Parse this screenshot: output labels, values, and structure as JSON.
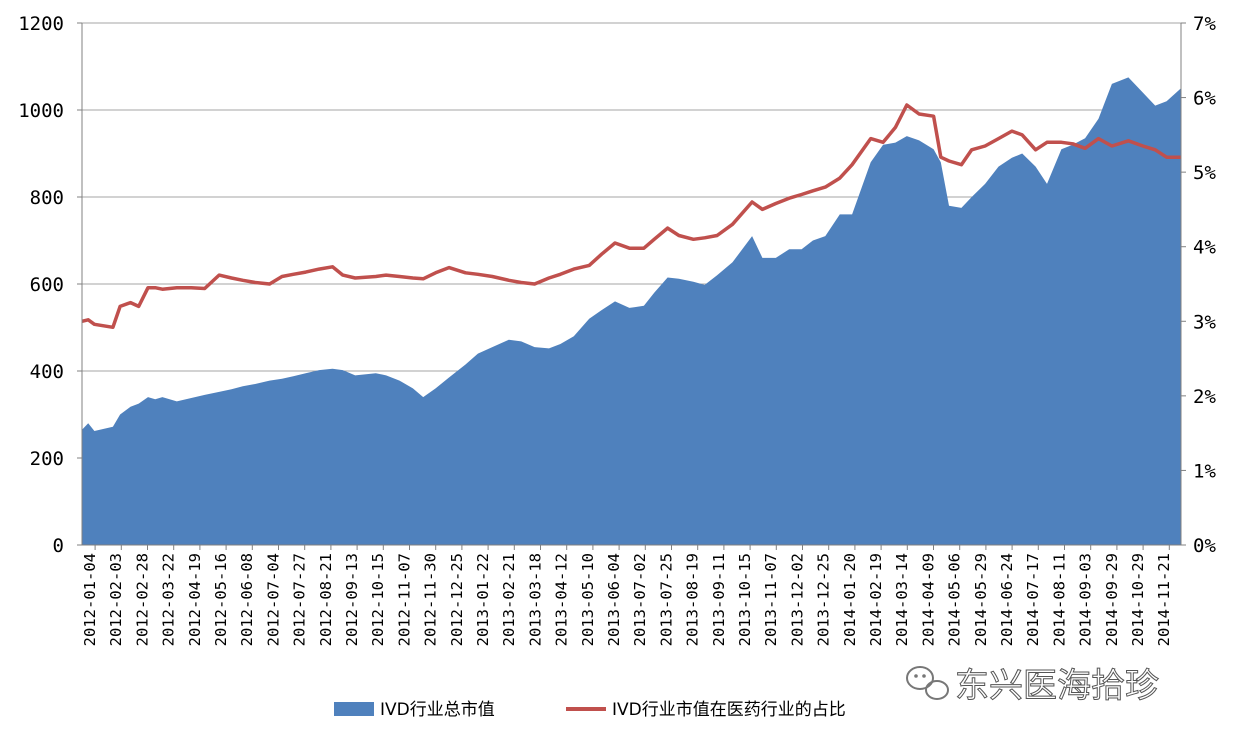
{
  "chart_data": {
    "type": "area+line",
    "title": "",
    "xlabel": "",
    "ylabel": "",
    "ylim": [
      0,
      1200
    ],
    "y2lim": [
      0,
      7
    ],
    "yticks": [
      "0",
      "200",
      "400",
      "600",
      "800",
      "1000",
      "1200"
    ],
    "y2ticks": [
      "0%",
      "1%",
      "2%",
      "3%",
      "4%",
      "5%",
      "6%",
      "7%"
    ],
    "grid": "horizontal",
    "legend_position": "bottom",
    "x_tick_labels": [
      "2012-01-04",
      "2012-02-03",
      "2012-02-28",
      "2012-03-22",
      "2012-04-19",
      "2012-05-16",
      "2012-06-08",
      "2012-07-04",
      "2012-07-27",
      "2012-08-21",
      "2012-09-13",
      "2012-10-15",
      "2012-11-07",
      "2012-11-30",
      "2012-12-25",
      "2013-01-22",
      "2013-02-21",
      "2013-03-18",
      "2013-04-12",
      "2013-05-10",
      "2013-06-04",
      "2013-07-02",
      "2013-07-25",
      "2013-08-19",
      "2013-09-11",
      "2013-10-15",
      "2013-11-07",
      "2013-12-02",
      "2013-12-25",
      "2014-01-20",
      "2014-02-19",
      "2014-03-14",
      "2014-04-09",
      "2014-05-06",
      "2014-05-29",
      "2014-06-24",
      "2014-07-17",
      "2014-08-11",
      "2014-09-03",
      "2014-09-29",
      "2014-10-29",
      "2014-11-21"
    ],
    "series": [
      {
        "name": "IVD行业总市值",
        "type": "area",
        "axis": "left",
        "color": "#4F81BD",
        "x": [
          "2012-01-04",
          "2012-01-10",
          "2012-01-16",
          "2012-02-03",
          "2012-02-10",
          "2012-02-20",
          "2012-02-28",
          "2012-03-08",
          "2012-03-15",
          "2012-03-22",
          "2012-04-05",
          "2012-04-19",
          "2012-05-02",
          "2012-05-16",
          "2012-05-28",
          "2012-06-08",
          "2012-06-20",
          "2012-07-04",
          "2012-07-16",
          "2012-07-27",
          "2012-08-08",
          "2012-08-21",
          "2012-09-03",
          "2012-09-13",
          "2012-09-25",
          "2012-10-15",
          "2012-10-25",
          "2012-11-07",
          "2012-11-20",
          "2012-11-30",
          "2012-12-12",
          "2012-12-25",
          "2013-01-10",
          "2013-01-22",
          "2013-02-05",
          "2013-02-21",
          "2013-03-05",
          "2013-03-18",
          "2013-04-01",
          "2013-04-12",
          "2013-04-25",
          "2013-05-10",
          "2013-05-22",
          "2013-06-04",
          "2013-06-18",
          "2013-07-02",
          "2013-07-12",
          "2013-07-25",
          "2013-08-05",
          "2013-08-19",
          "2013-08-30",
          "2013-09-11",
          "2013-09-26",
          "2013-10-15",
          "2013-10-25",
          "2013-11-07",
          "2013-11-20",
          "2013-12-02",
          "2013-12-13",
          "2013-12-25",
          "2014-01-08",
          "2014-01-20",
          "2014-02-07",
          "2014-02-19",
          "2014-03-03",
          "2014-03-14",
          "2014-03-26",
          "2014-04-09",
          "2014-04-16",
          "2014-04-24",
          "2014-05-06",
          "2014-05-16",
          "2014-05-29",
          "2014-06-11",
          "2014-06-24",
          "2014-07-04",
          "2014-07-17",
          "2014-07-28",
          "2014-08-11",
          "2014-08-22",
          "2014-09-03",
          "2014-09-16",
          "2014-09-29",
          "2014-10-15",
          "2014-10-29",
          "2014-11-10",
          "2014-11-21",
          "2014-12-05"
        ],
        "values": [
          265,
          280,
          262,
          272,
          300,
          318,
          325,
          340,
          335,
          340,
          330,
          338,
          345,
          352,
          358,
          365,
          370,
          378,
          382,
          388,
          395,
          402,
          405,
          402,
          390,
          395,
          390,
          378,
          360,
          340,
          360,
          385,
          415,
          440,
          455,
          472,
          468,
          455,
          452,
          462,
          480,
          520,
          540,
          560,
          545,
          550,
          580,
          615,
          612,
          605,
          598,
          620,
          650,
          710,
          660,
          660,
          680,
          680,
          700,
          710,
          760,
          760,
          880,
          920,
          925,
          940,
          930,
          910,
          880,
          780,
          775,
          800,
          830,
          870,
          890,
          900,
          870,
          830,
          910,
          920,
          935,
          980,
          1060,
          1075,
          1040,
          1010,
          1020,
          1050
        ]
      },
      {
        "name": "IVD行业市值在医药行业的占比",
        "type": "line",
        "axis": "right",
        "color": "#C0504D",
        "x": [
          "2012-01-04",
          "2012-01-10",
          "2012-01-16",
          "2012-02-03",
          "2012-02-10",
          "2012-02-20",
          "2012-02-28",
          "2012-03-08",
          "2012-03-15",
          "2012-03-22",
          "2012-04-05",
          "2012-04-19",
          "2012-05-02",
          "2012-05-16",
          "2012-05-28",
          "2012-06-08",
          "2012-06-20",
          "2012-07-04",
          "2012-07-16",
          "2012-07-27",
          "2012-08-08",
          "2012-08-21",
          "2012-09-03",
          "2012-09-13",
          "2012-09-25",
          "2012-10-15",
          "2012-10-25",
          "2012-11-07",
          "2012-11-20",
          "2012-11-30",
          "2012-12-12",
          "2012-12-25",
          "2013-01-10",
          "2013-01-22",
          "2013-02-05",
          "2013-02-21",
          "2013-03-05",
          "2013-03-18",
          "2013-04-01",
          "2013-04-12",
          "2013-04-25",
          "2013-05-10",
          "2013-05-22",
          "2013-06-04",
          "2013-06-18",
          "2013-07-02",
          "2013-07-12",
          "2013-07-25",
          "2013-08-05",
          "2013-08-19",
          "2013-08-30",
          "2013-09-11",
          "2013-09-26",
          "2013-10-15",
          "2013-10-25",
          "2013-11-07",
          "2013-11-20",
          "2013-12-02",
          "2013-12-13",
          "2013-12-25",
          "2014-01-08",
          "2014-01-20",
          "2014-02-07",
          "2014-02-19",
          "2014-03-03",
          "2014-03-14",
          "2014-03-26",
          "2014-04-09",
          "2014-04-16",
          "2014-04-24",
          "2014-05-06",
          "2014-05-16",
          "2014-05-29",
          "2014-06-11",
          "2014-06-24",
          "2014-07-04",
          "2014-07-17",
          "2014-07-28",
          "2014-08-11",
          "2014-08-22",
          "2014-09-03",
          "2014-09-16",
          "2014-09-29",
          "2014-10-15",
          "2014-10-29",
          "2014-11-10",
          "2014-11-21",
          "2014-12-05"
        ],
        "values": [
          3.0,
          3.02,
          2.96,
          2.92,
          3.2,
          3.25,
          3.2,
          3.45,
          3.45,
          3.43,
          3.45,
          3.45,
          3.44,
          3.62,
          3.58,
          3.55,
          3.52,
          3.5,
          3.6,
          3.63,
          3.66,
          3.7,
          3.73,
          3.62,
          3.58,
          3.6,
          3.62,
          3.6,
          3.58,
          3.57,
          3.65,
          3.72,
          3.65,
          3.63,
          3.6,
          3.55,
          3.52,
          3.5,
          3.58,
          3.63,
          3.7,
          3.75,
          3.9,
          4.05,
          3.98,
          3.98,
          4.1,
          4.25,
          4.15,
          4.1,
          4.12,
          4.15,
          4.3,
          4.6,
          4.5,
          4.58,
          4.65,
          4.7,
          4.75,
          4.8,
          4.92,
          5.1,
          5.45,
          5.4,
          5.6,
          5.9,
          5.78,
          5.75,
          5.2,
          5.15,
          5.1,
          5.3,
          5.35,
          5.45,
          5.55,
          5.5,
          5.3,
          5.4,
          5.4,
          5.38,
          5.32,
          5.45,
          5.35,
          5.42,
          5.35,
          5.3,
          5.2,
          5.2
        ]
      }
    ]
  },
  "legend": {
    "area_label": "IVD行业总市值",
    "line_label": "IVD行业市值在医药行业的占比"
  },
  "watermark": {
    "text": "东兴医海拾珍",
    "icon": "wechat-icon"
  }
}
